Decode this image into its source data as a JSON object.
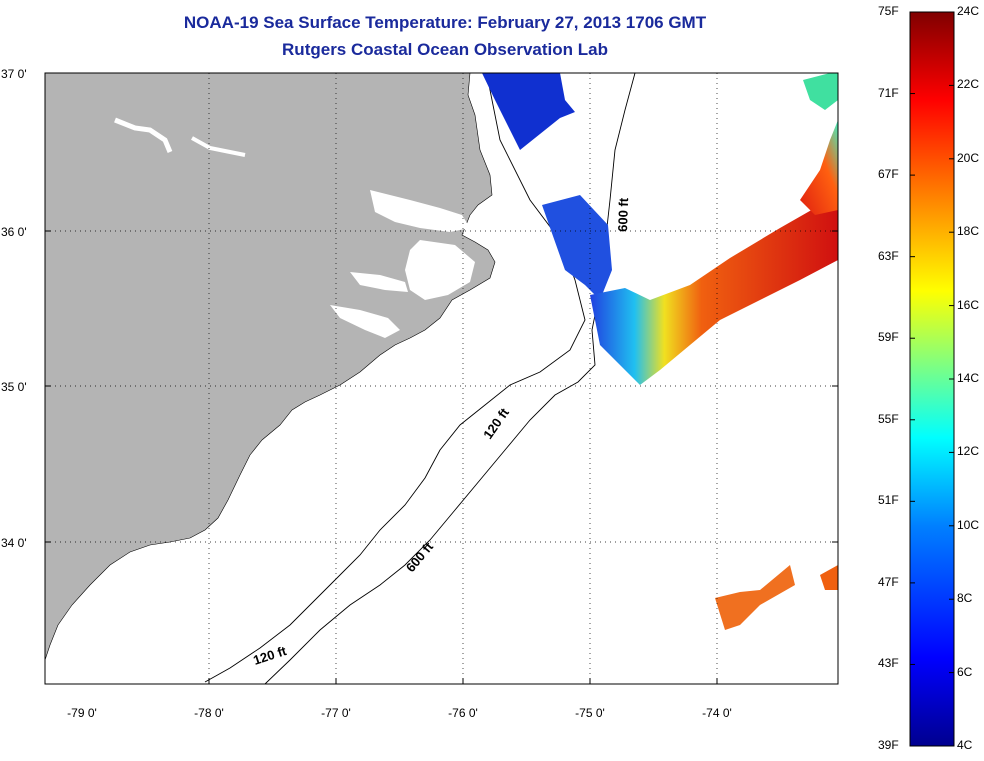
{
  "title": "NOAA-19 Sea Surface Temperature:  February 27, 2013 1706 GMT",
  "subtitle": "Rutgers Coastal Ocean Observation Lab",
  "axes": {
    "lat_ticks": [
      {
        "label": "37 0'",
        "lat": 37.0
      },
      {
        "label": "36 0'",
        "lat": 36.0
      },
      {
        "label": "35 0'",
        "lat": 35.0
      },
      {
        "label": "34 0'",
        "lat": 34.0
      }
    ],
    "lon_ticks": [
      {
        "label": "-79 0'",
        "lon": -79.0
      },
      {
        "label": "-78 0'",
        "lon": -78.0
      },
      {
        "label": "-77 0'",
        "lon": -77.0
      },
      {
        "label": "-76 0'",
        "lon": -76.0
      },
      {
        "label": "-75 0'",
        "lon": -75.0
      },
      {
        "label": "-74 0'",
        "lon": -74.0
      }
    ]
  },
  "contour_labels": {
    "c600_north": "600 ft",
    "c120_mid": "120 ft",
    "c600_south": "600 ft",
    "c120_south": "120 ft"
  },
  "colorbar": {
    "f_labels": [
      "75F",
      "71F",
      "67F",
      "63F",
      "59F",
      "55F",
      "51F",
      "47F",
      "43F",
      "39F"
    ],
    "c_labels": [
      "24C",
      "22C",
      "20C",
      "18C",
      "16C",
      "14C",
      "12C",
      "10C",
      "8C",
      "6C",
      "4C"
    ],
    "colors": [
      "#00008f",
      "#0000ff",
      "#0080ff",
      "#00ffff",
      "#80ff80",
      "#ffff00",
      "#ff8000",
      "#ff0000",
      "#800000"
    ]
  },
  "colors": {
    "land": "#b4b4b4",
    "title": "#1a2a9c",
    "cold": "#1030d0",
    "warm": "#e02010"
  }
}
